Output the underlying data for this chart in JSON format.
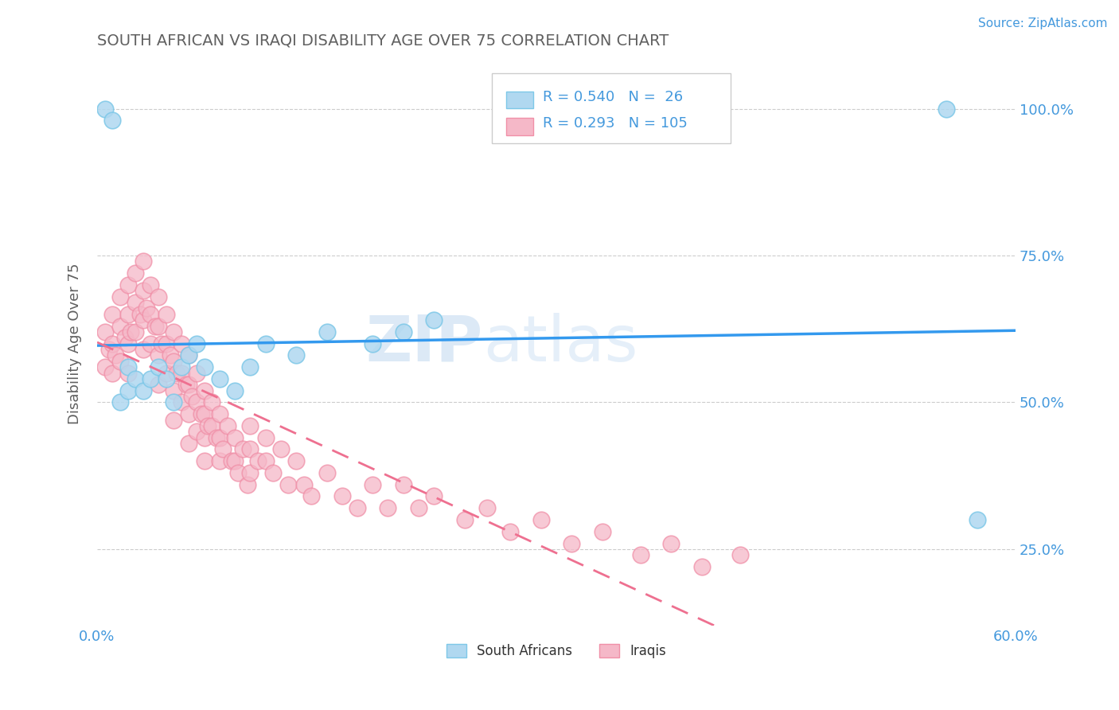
{
  "title": "SOUTH AFRICAN VS IRAQI DISABILITY AGE OVER 75 CORRELATION CHART",
  "source_text": "Source: ZipAtlas.com",
  "ylabel": "Disability Age Over 75",
  "xlim": [
    0.0,
    0.6
  ],
  "ylim": [
    0.12,
    1.08
  ],
  "x_tick_vals": [
    0.0,
    0.1,
    0.2,
    0.3,
    0.4,
    0.5,
    0.6
  ],
  "x_tick_labels": [
    "0.0%",
    "",
    "",
    "",
    "",
    "",
    "60.0%"
  ],
  "y_ticks_right": [
    0.25,
    0.5,
    0.75,
    1.0
  ],
  "y_tick_labels_right": [
    "25.0%",
    "50.0%",
    "75.0%",
    "100.0%"
  ],
  "sa_color": "#7ec8e8",
  "sa_color_fill": "#b0d8f0",
  "iraq_color": "#f090a8",
  "iraq_color_fill": "#f5b8c8",
  "sa_R": 0.54,
  "sa_N": 26,
  "iraq_R": 0.293,
  "iraq_N": 105,
  "legend_label_sa": "South Africans",
  "legend_label_iraq": "Iraqis",
  "watermark_zip": "ZIP",
  "watermark_atlas": "atlas",
  "background_color": "#ffffff",
  "grid_color": "#cccccc",
  "title_color": "#606060",
  "axis_label_color": "#606060",
  "tick_color": "#4499dd",
  "sa_line_color": "#3399ee",
  "iraq_line_color": "#ee7090",
  "sa_points_x": [
    0.005,
    0.01,
    0.015,
    0.02,
    0.02,
    0.025,
    0.03,
    0.035,
    0.04,
    0.045,
    0.05,
    0.055,
    0.06,
    0.065,
    0.07,
    0.08,
    0.09,
    0.1,
    0.11,
    0.13,
    0.15,
    0.18,
    0.2,
    0.22,
    0.555,
    0.575
  ],
  "sa_points_y": [
    1.0,
    0.98,
    0.5,
    0.52,
    0.56,
    0.54,
    0.52,
    0.54,
    0.56,
    0.54,
    0.5,
    0.56,
    0.58,
    0.6,
    0.56,
    0.54,
    0.52,
    0.56,
    0.6,
    0.58,
    0.62,
    0.6,
    0.62,
    0.64,
    1.0,
    0.3
  ],
  "iraq_points_x": [
    0.005,
    0.005,
    0.008,
    0.01,
    0.01,
    0.01,
    0.012,
    0.015,
    0.015,
    0.015,
    0.018,
    0.02,
    0.02,
    0.02,
    0.02,
    0.022,
    0.025,
    0.025,
    0.025,
    0.028,
    0.03,
    0.03,
    0.03,
    0.03,
    0.032,
    0.035,
    0.035,
    0.035,
    0.038,
    0.04,
    0.04,
    0.04,
    0.04,
    0.042,
    0.045,
    0.045,
    0.045,
    0.048,
    0.05,
    0.05,
    0.05,
    0.05,
    0.052,
    0.055,
    0.055,
    0.055,
    0.058,
    0.06,
    0.06,
    0.06,
    0.06,
    0.062,
    0.065,
    0.065,
    0.065,
    0.068,
    0.07,
    0.07,
    0.07,
    0.07,
    0.072,
    0.075,
    0.075,
    0.078,
    0.08,
    0.08,
    0.08,
    0.082,
    0.085,
    0.088,
    0.09,
    0.09,
    0.092,
    0.095,
    0.098,
    0.1,
    0.1,
    0.1,
    0.105,
    0.11,
    0.11,
    0.115,
    0.12,
    0.125,
    0.13,
    0.135,
    0.14,
    0.15,
    0.16,
    0.17,
    0.18,
    0.19,
    0.2,
    0.21,
    0.22,
    0.24,
    0.255,
    0.27,
    0.29,
    0.31,
    0.33,
    0.355,
    0.375,
    0.395,
    0.42
  ],
  "iraq_points_y": [
    0.62,
    0.56,
    0.59,
    0.65,
    0.6,
    0.55,
    0.58,
    0.68,
    0.63,
    0.57,
    0.61,
    0.7,
    0.65,
    0.6,
    0.55,
    0.62,
    0.72,
    0.67,
    0.62,
    0.65,
    0.74,
    0.69,
    0.64,
    0.59,
    0.66,
    0.7,
    0.65,
    0.6,
    0.63,
    0.68,
    0.63,
    0.58,
    0.53,
    0.6,
    0.65,
    0.6,
    0.55,
    0.58,
    0.62,
    0.57,
    0.52,
    0.47,
    0.55,
    0.6,
    0.55,
    0.5,
    0.53,
    0.58,
    0.53,
    0.48,
    0.43,
    0.51,
    0.55,
    0.5,
    0.45,
    0.48,
    0.52,
    0.48,
    0.44,
    0.4,
    0.46,
    0.5,
    0.46,
    0.44,
    0.48,
    0.44,
    0.4,
    0.42,
    0.46,
    0.4,
    0.44,
    0.4,
    0.38,
    0.42,
    0.36,
    0.46,
    0.42,
    0.38,
    0.4,
    0.44,
    0.4,
    0.38,
    0.42,
    0.36,
    0.4,
    0.36,
    0.34,
    0.38,
    0.34,
    0.32,
    0.36,
    0.32,
    0.36,
    0.32,
    0.34,
    0.3,
    0.32,
    0.28,
    0.3,
    0.26,
    0.28,
    0.24,
    0.26,
    0.22,
    0.24
  ]
}
